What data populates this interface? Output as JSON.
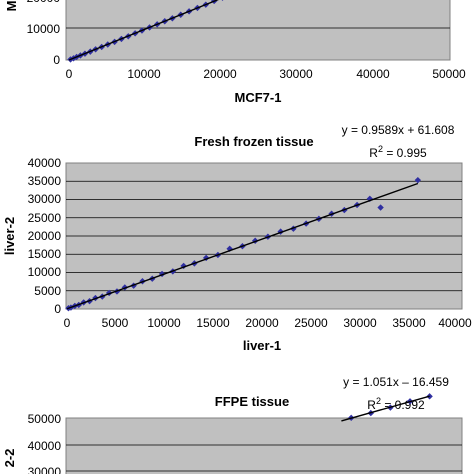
{
  "chart_data": [
    {
      "type": "scatter",
      "title": "",
      "xlabel": "MCF7-1",
      "ylabel": "M",
      "xlim": [
        0,
        50000
      ],
      "ylim": [
        0,
        30000
      ],
      "x_ticks": [
        "0",
        "10000",
        "20000",
        "30000",
        "40000",
        "50000"
      ],
      "y_ticks": [
        "0",
        "10000",
        "20000"
      ],
      "grid": true,
      "marker_color": "#2f2fa0",
      "trendline": true,
      "series": [
        {
          "x": [
            200,
            600,
            1000,
            1500,
            2100,
            2800,
            3500,
            4300,
            5100,
            6000,
            6900,
            7800,
            8700,
            9600,
            10600,
            11600,
            12600,
            13600,
            14700,
            15800,
            16900,
            18000,
            19100,
            20200,
            21300,
            22400
          ],
          "y": [
            190,
            560,
            980,
            1460,
            2050,
            2700,
            3450,
            4200,
            5000,
            5850,
            6800,
            7650,
            8600,
            9500,
            10500,
            11500,
            12500,
            13450,
            14600,
            15700,
            16800,
            17850,
            19050,
            20100,
            21200,
            22250
          ]
        }
      ]
    },
    {
      "type": "scatter",
      "title": "Fresh frozen tissue",
      "equation": "y = 0.9589x + 61.608",
      "r2_prefix": "R",
      "r2_sup": "2",
      "r2_value": " = 0.995",
      "slope": 0.9589,
      "intercept": 61.608,
      "xlabel": "liver-1",
      "ylabel": "liver-2",
      "xlim": [
        0,
        40000
      ],
      "ylim": [
        0,
        40000
      ],
      "x_ticks": [
        "0",
        "5000",
        "10000",
        "15000",
        "20000",
        "25000",
        "30000",
        "35000",
        "40000"
      ],
      "y_ticks": [
        "0",
        "5000",
        "10000",
        "15000",
        "20000",
        "25000",
        "30000",
        "35000",
        "40000"
      ],
      "grid": true,
      "marker_color": "#2f2fa0",
      "trendline": true,
      "series": [
        {
          "x": [
            150,
            400,
            800,
            1200,
            1700,
            2300,
            2900,
            3600,
            4300,
            5100,
            5900,
            6800,
            7700,
            8700,
            9700,
            10800,
            11900,
            13000,
            14200,
            15400,
            16600,
            17900,
            19200,
            20500,
            21800,
            23100,
            24400,
            25700,
            27000,
            28300,
            29600,
            30900,
            32000,
            35800
          ],
          "y": [
            220,
            390,
            850,
            1100,
            1800,
            2150,
            3000,
            3400,
            4400,
            4800,
            5900,
            6400,
            7600,
            8300,
            9600,
            10300,
            11800,
            12500,
            14000,
            14800,
            16500,
            17200,
            18700,
            19800,
            21200,
            22000,
            23400,
            24700,
            26100,
            27100,
            28500,
            30200,
            27800,
            35300
          ]
        }
      ]
    },
    {
      "type": "scatter",
      "title": "FFPE tissue",
      "equation": "y = 1.051x – 16.459",
      "r2_prefix": "R",
      "r2_sup": "2",
      "r2_value": " = 0.992",
      "slope": 1.051,
      "intercept": -16.459,
      "xlabel": "",
      "ylabel": "2-2",
      "xlim": [
        0,
        40000
      ],
      "ylim": [
        0,
        50000
      ],
      "y_ticks": [
        "50000",
        "40000",
        "30000"
      ],
      "grid": true,
      "marker_color": "#2f2fa0",
      "trendline": true,
      "series": [
        {
          "x": [
            29000,
            31000,
            33000,
            35000,
            37000
          ],
          "y": [
            30600,
            32400,
            34500,
            36900,
            38800
          ]
        }
      ]
    }
  ]
}
